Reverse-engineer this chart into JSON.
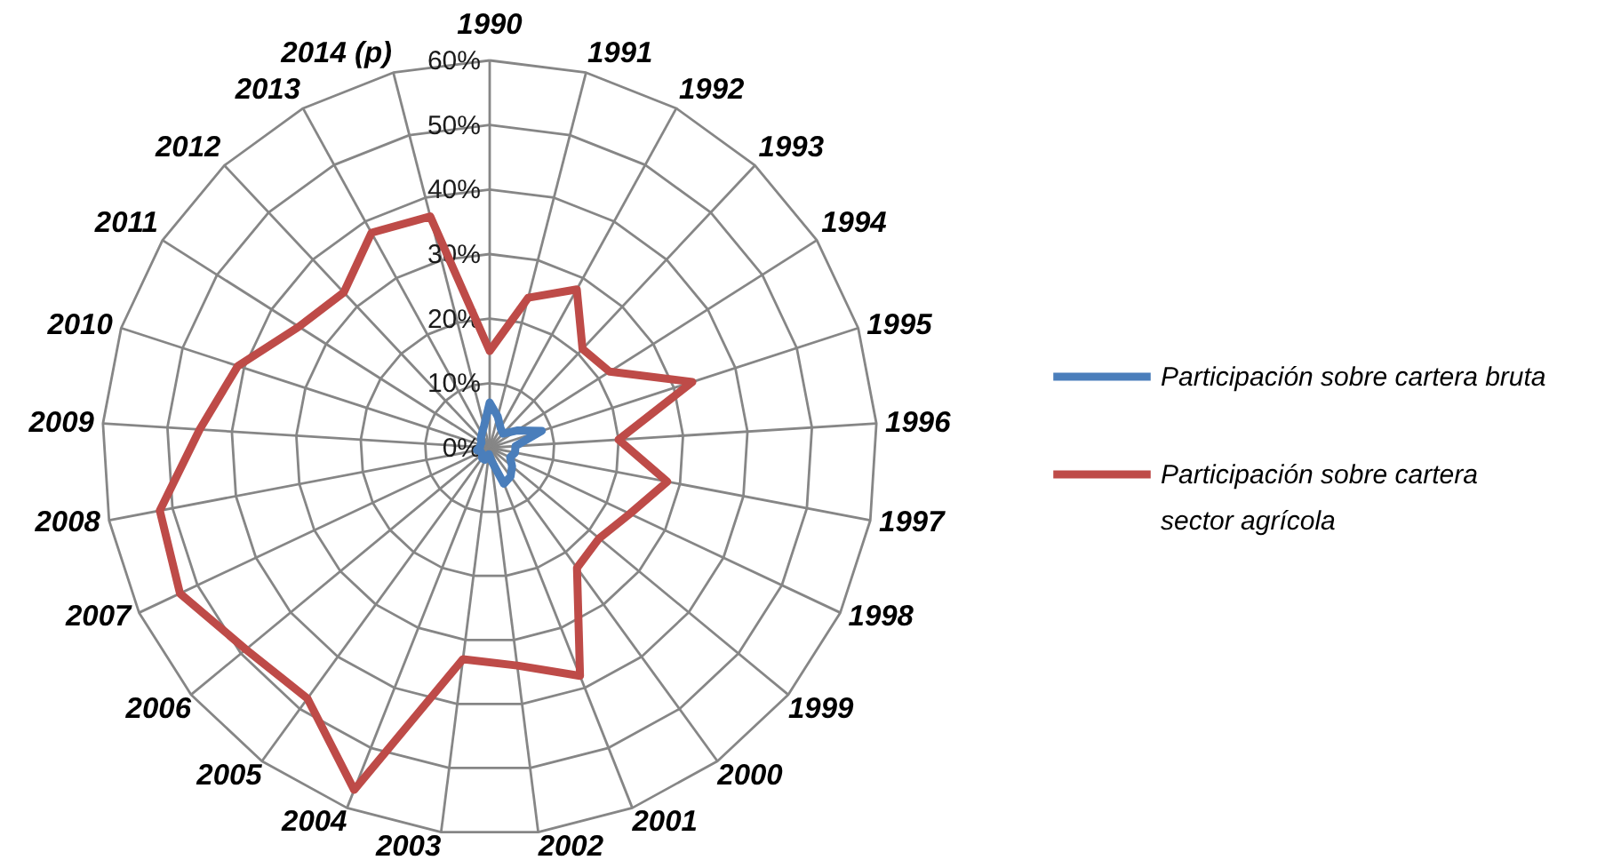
{
  "chart_data": {
    "type": "radar",
    "categories": [
      "1990",
      "1991",
      "1992",
      "1993",
      "1994",
      "1995",
      "1996",
      "1997",
      "1998",
      "1999",
      "2000",
      "2001",
      "2002",
      "2003",
      "2004",
      "2005",
      "2006",
      "2007",
      "2008",
      "2009",
      "2010",
      "2011",
      "2012",
      "2013",
      "2014 (p)"
    ],
    "series": [
      {
        "name": "Participación sobre cartera bruta",
        "color": "#4a7ebb",
        "values": [
          7,
          5,
          3.5,
          3,
          5,
          8.5,
          4,
          4,
          3.5,
          4.5,
          5.5,
          6,
          2,
          1,
          2,
          2,
          1.5,
          1.5,
          2,
          1.5,
          1.5,
          1.5,
          2,
          2.5,
          3.5
        ]
      },
      {
        "name": "Participación sobre cartera sector agrícola",
        "color": "#be4b48",
        "values": [
          15,
          24,
          28,
          21,
          22,
          33,
          20,
          28,
          24,
          22,
          23,
          38,
          34,
          33,
          57,
          48,
          49,
          53,
          52,
          45,
          41,
          35,
          33,
          38,
          37
        ]
      }
    ],
    "ylim": [
      0,
      60
    ],
    "yticks": [
      {
        "value": 0,
        "label": "0%"
      },
      {
        "value": 10,
        "label": "10%"
      },
      {
        "value": 20,
        "label": "20%"
      },
      {
        "value": 30,
        "label": "30%"
      },
      {
        "value": 40,
        "label": "40%"
      },
      {
        "value": 50,
        "label": "50%"
      },
      {
        "value": 60,
        "label": "60%"
      }
    ],
    "grid": true,
    "legend": "right"
  }
}
